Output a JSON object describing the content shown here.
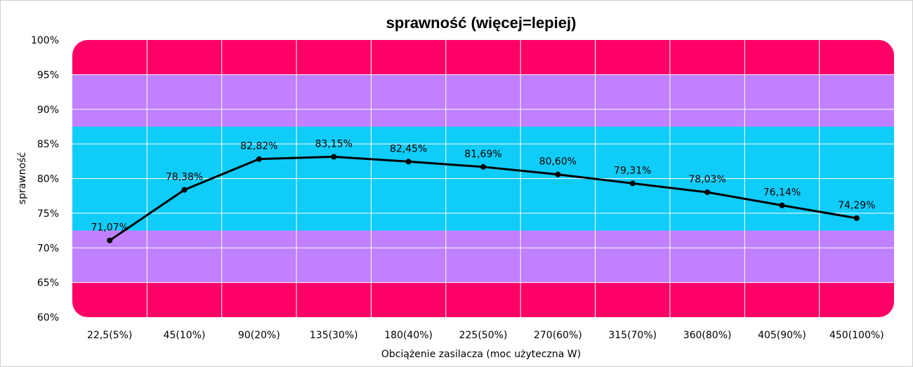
{
  "chart_data": {
    "type": "line",
    "title": "sprawność (więcej=lepiej)",
    "xlabel": "Obciążenie zasilacza (moc użyteczna W)",
    "ylabel": "sprawność",
    "categories": [
      "22,5(5%)",
      "45(10%)",
      "90(20%)",
      "135(30%)",
      "180(40%)",
      "225(50%)",
      "270(60%)",
      "315(70%)",
      "360(80%)",
      "405(90%)",
      "450(100%)"
    ],
    "series": [
      {
        "values": [
          71.07,
          78.38,
          82.82,
          83.15,
          82.45,
          81.69,
          80.6,
          79.31,
          78.03,
          76.14,
          74.29
        ],
        "labels": [
          "71,07%",
          "78,38%",
          "82,82%",
          "83,15%",
          "82,45%",
          "81,69%",
          "80,60%",
          "79,31%",
          "78,03%",
          "76,14%",
          "74,29%"
        ],
        "color": "#000000"
      }
    ],
    "ylim": [
      60,
      100
    ],
    "yticks": [
      60,
      65,
      70,
      75,
      80,
      85,
      90,
      95,
      100
    ],
    "ytick_labels": [
      "60%",
      "65%",
      "70%",
      "75%",
      "80%",
      "85%",
      "90%",
      "95%",
      "100%"
    ],
    "grid": true,
    "legend": false,
    "bands": [
      {
        "from": 60,
        "to": 65,
        "color": "#ff0066"
      },
      {
        "from": 65,
        "to": 72.5,
        "color": "#c080ff"
      },
      {
        "from": 72.5,
        "to": 87.5,
        "color": "#10ccf8"
      },
      {
        "from": 87.5,
        "to": 95,
        "color": "#c080ff"
      },
      {
        "from": 95,
        "to": 100,
        "color": "#ff0066"
      }
    ]
  }
}
